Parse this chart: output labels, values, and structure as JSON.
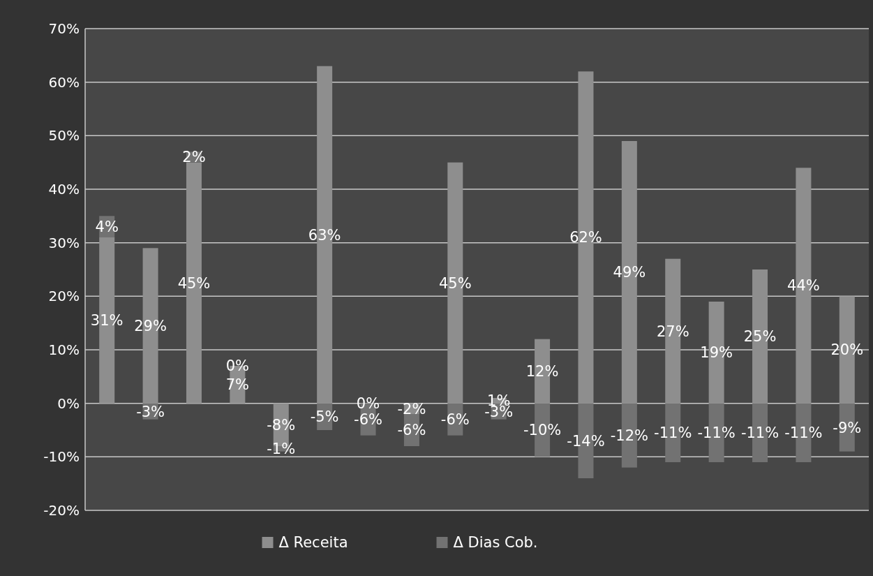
{
  "chart_data": {
    "type": "bar",
    "stacked": true,
    "categories": [
      null,
      null,
      null,
      null,
      null,
      null,
      null,
      null,
      null,
      null,
      null,
      null,
      null,
      null,
      null,
      null,
      null,
      null
    ],
    "series": [
      {
        "name": "Δ Receita",
        "color": "#8e8e8e",
        "values": [
          31,
          29,
          45,
          7,
          -8,
          63,
          0,
          -2,
          45,
          1,
          12,
          62,
          49,
          27,
          19,
          25,
          44,
          20
        ],
        "value_labels": [
          "31%",
          "29%",
          "45%",
          "7%",
          "-8%",
          "63%",
          "0%",
          "-2%",
          "45%",
          "1%",
          "12%",
          "62%",
          "49%",
          "27%",
          "19%",
          "25%",
          "44%",
          "20%"
        ]
      },
      {
        "name": "Δ Dias Cob.",
        "color": "#727272",
        "values": [
          4,
          -3,
          2,
          0,
          -1,
          -5,
          -6,
          -6,
          -6,
          -3,
          -10,
          -14,
          -12,
          -11,
          -11,
          -11,
          -11,
          -9
        ],
        "value_labels": [
          "4%",
          "-3%",
          "2%",
          "0%",
          "-1%",
          "-5%",
          "-6%",
          "-6%",
          "-6%",
          "-3%",
          "-10%",
          "-14%",
          "-12%",
          "-11%",
          "-11%",
          "-11%",
          "-11%",
          "-9%"
        ]
      }
    ],
    "ylim": [
      -20,
      70
    ],
    "yticks": [
      {
        "value": -20,
        "label": "-20%"
      },
      {
        "value": -10,
        "label": "-10%"
      },
      {
        "value": 0,
        "label": "0%"
      },
      {
        "value": 10,
        "label": "10%"
      },
      {
        "value": 20,
        "label": "20%"
      },
      {
        "value": 30,
        "label": "30%"
      },
      {
        "value": 40,
        "label": "40%"
      },
      {
        "value": 50,
        "label": "50%"
      },
      {
        "value": 60,
        "label": "60%"
      },
      {
        "value": 70,
        "label": "70%"
      }
    ],
    "grid": "y",
    "legend": "bottom",
    "tick_labels": "y"
  }
}
